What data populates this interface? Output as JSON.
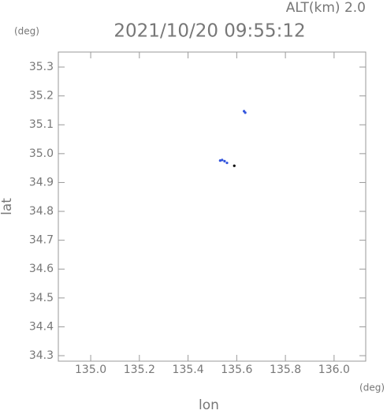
{
  "chart_data": {
    "type": "scatter",
    "title": "2021/10/20 09:55:12",
    "altitude_label": "ALT(km) 2.0",
    "y_unit": "(deg)",
    "x_unit": "(deg)",
    "x_label": "lon",
    "y_label": "lat",
    "xlim": [
      134.867,
      136.13
    ],
    "ylim": [
      34.281,
      35.352
    ],
    "xticks": [
      {
        "value": 135.0,
        "label": "135.0"
      },
      {
        "value": 135.2,
        "label": "135.2"
      },
      {
        "value": 135.4,
        "label": "135.4"
      },
      {
        "value": 135.6,
        "label": "135.6"
      },
      {
        "value": 135.8,
        "label": "135.8"
      },
      {
        "value": 136.0,
        "label": "136.0"
      }
    ],
    "yticks": [
      {
        "value": 34.3,
        "label": "34.3"
      },
      {
        "value": 34.4,
        "label": "34.4"
      },
      {
        "value": 34.5,
        "label": "34.5"
      },
      {
        "value": 34.6,
        "label": "34.6"
      },
      {
        "value": 34.7,
        "label": "34.7"
      },
      {
        "value": 34.8,
        "label": "34.8"
      },
      {
        "value": 34.9,
        "label": "34.9"
      },
      {
        "value": 35.0,
        "label": "35.0"
      },
      {
        "value": 35.1,
        "label": "35.1"
      },
      {
        "value": 35.2,
        "label": "35.2"
      },
      {
        "value": 35.3,
        "label": "35.3"
      }
    ],
    "series": [
      {
        "color": "#3355dd",
        "x": [
          135.532,
          135.54,
          135.55,
          135.56,
          135.63,
          135.635
        ],
        "values": [
          34.976,
          34.978,
          34.974,
          34.968,
          35.147,
          35.142
        ]
      },
      {
        "color": "#000000",
        "x": [
          135.59
        ],
        "values": [
          34.958
        ]
      }
    ]
  }
}
